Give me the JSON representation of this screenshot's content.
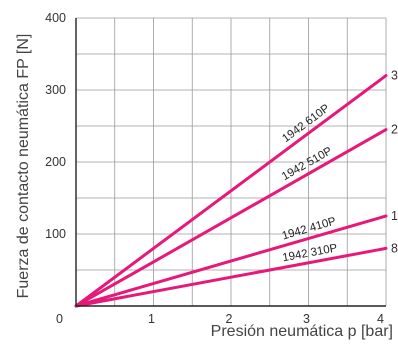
{
  "chart_data": {
    "type": "line",
    "title": "",
    "xlabel": "Presión neumática p [bar]",
    "ylabel": "Fuerza de contacto neumática FP [N]",
    "xlim": [
      0,
      4
    ],
    "ylim": [
      0,
      400
    ],
    "xticks": [
      0,
      1,
      2,
      3,
      4
    ],
    "yticks": [
      0,
      100,
      200,
      300,
      400
    ],
    "xtick_labels": [
      "0",
      "1",
      "2",
      "3",
      "4"
    ],
    "ytick_labels": [
      "",
      "100",
      "200",
      "300",
      "400"
    ],
    "grid": true,
    "line_color": "#e6197a",
    "series": [
      {
        "name": "1942 610P",
        "x": [
          0,
          4
        ],
        "y": [
          0,
          320
        ],
        "end_label": "3"
      },
      {
        "name": "1942 510P",
        "x": [
          0,
          4
        ],
        "y": [
          0,
          245
        ],
        "end_label": "2"
      },
      {
        "name": "1942 410P",
        "x": [
          0,
          4
        ],
        "y": [
          0,
          125
        ],
        "end_label": "1"
      },
      {
        "name": "1942 310P",
        "x": [
          0,
          4
        ],
        "y": [
          0,
          80
        ],
        "end_label": "8"
      }
    ]
  }
}
